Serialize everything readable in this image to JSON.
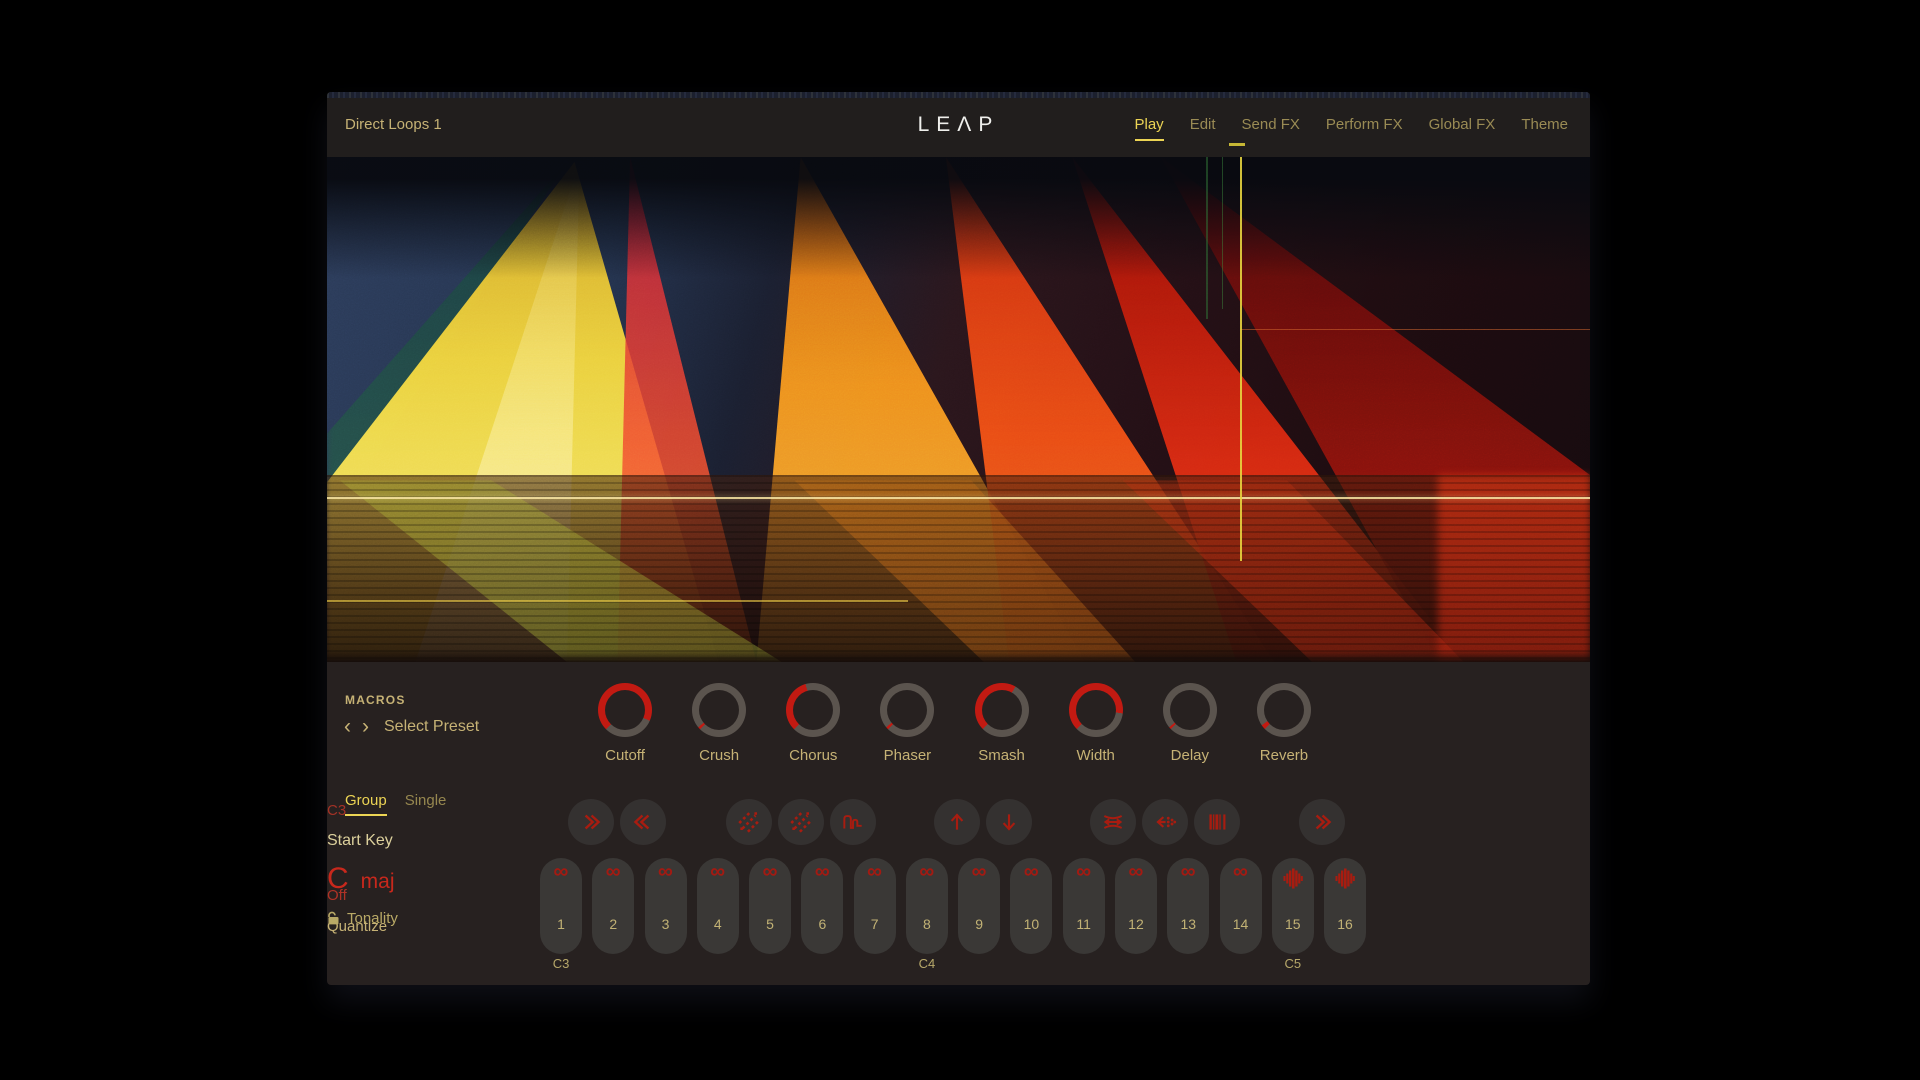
{
  "header": {
    "preset_name": "Direct Loops 1",
    "logo": "LEΛP",
    "nav": [
      {
        "label": "Play",
        "active": true
      },
      {
        "label": "Edit",
        "active": false
      },
      {
        "label": "Send FX",
        "active": false
      },
      {
        "label": "Perform FX",
        "active": false
      },
      {
        "label": "Global FX",
        "active": false
      },
      {
        "label": "Theme",
        "active": false
      }
    ]
  },
  "macros": {
    "section_label": "MACROS",
    "preset_selector": {
      "prev_glyph": "‹",
      "next_glyph": "›",
      "label": "Select Preset"
    },
    "knobs": [
      {
        "label": "Cutoff",
        "value_pct": 92
      },
      {
        "label": "Crush",
        "value_pct": 2
      },
      {
        "label": "Chorus",
        "value_pct": 44
      },
      {
        "label": "Phaser",
        "value_pct": 2
      },
      {
        "label": "Smash",
        "value_pct": 61
      },
      {
        "label": "Width",
        "value_pct": 86
      },
      {
        "label": "Delay",
        "value_pct": 2
      },
      {
        "label": "Reverb",
        "value_pct": 4
      }
    ]
  },
  "mode_tabs": [
    {
      "label": "Group",
      "active": true
    },
    {
      "label": "Single",
      "active": false
    }
  ],
  "quantize": {
    "value": "Off",
    "label": "Quantize"
  },
  "toolbar": {
    "buttons": [
      {
        "name": "fast-forward-button",
        "icon": "chevrons-right-icon"
      },
      {
        "name": "rewind-button",
        "icon": "chevrons-left-icon"
      },
      {
        "name": "texture-a-button",
        "icon": "diagonal-hatch-icon"
      },
      {
        "name": "texture-b-button",
        "icon": "diagonal-hatch-icon"
      },
      {
        "name": "waveform-button",
        "icon": "pulse-wave-icon"
      },
      {
        "name": "transpose-up-button",
        "icon": "arrow-up-icon"
      },
      {
        "name": "transpose-down-button",
        "icon": "arrow-down-icon"
      },
      {
        "name": "time-stretch-button",
        "icon": "time-stretch-icon"
      },
      {
        "name": "scatter-left-button",
        "icon": "arrow-left-dots-icon"
      },
      {
        "name": "pattern-button",
        "icon": "barcode-icon"
      },
      {
        "name": "advance-button",
        "icon": "chevrons-right-icon"
      }
    ]
  },
  "pads": {
    "items": [
      {
        "number": "1",
        "icon": "loop"
      },
      {
        "number": "2",
        "icon": "loop"
      },
      {
        "number": "3",
        "icon": "loop"
      },
      {
        "number": "4",
        "icon": "loop"
      },
      {
        "number": "5",
        "icon": "loop"
      },
      {
        "number": "6",
        "icon": "loop"
      },
      {
        "number": "7",
        "icon": "loop"
      },
      {
        "number": "8",
        "icon": "loop"
      },
      {
        "number": "9",
        "icon": "loop"
      },
      {
        "number": "10",
        "icon": "loop"
      },
      {
        "number": "11",
        "icon": "loop"
      },
      {
        "number": "12",
        "icon": "loop"
      },
      {
        "number": "13",
        "icon": "loop"
      },
      {
        "number": "14",
        "icon": "loop"
      },
      {
        "number": "15",
        "icon": "one-shot"
      },
      {
        "number": "16",
        "icon": "one-shot"
      }
    ],
    "octave_markers": [
      {
        "label": "C3",
        "pad_index": 0
      },
      {
        "label": "C4",
        "pad_index": 7
      },
      {
        "label": "C5",
        "pad_index": 14
      }
    ]
  },
  "key_panel": {
    "start_key_value": "C3",
    "start_key_label": "Start Key",
    "key_root": "C",
    "key_scale": "maj",
    "tonality_label": "Tonality"
  },
  "colors": {
    "accent_gold": "#c6b275",
    "active_yellow": "#ecd454",
    "knob_red": "#c21a12",
    "knob_track": "#5b544e",
    "icon_red": "#a81c10",
    "panel_bg": "#272120"
  }
}
